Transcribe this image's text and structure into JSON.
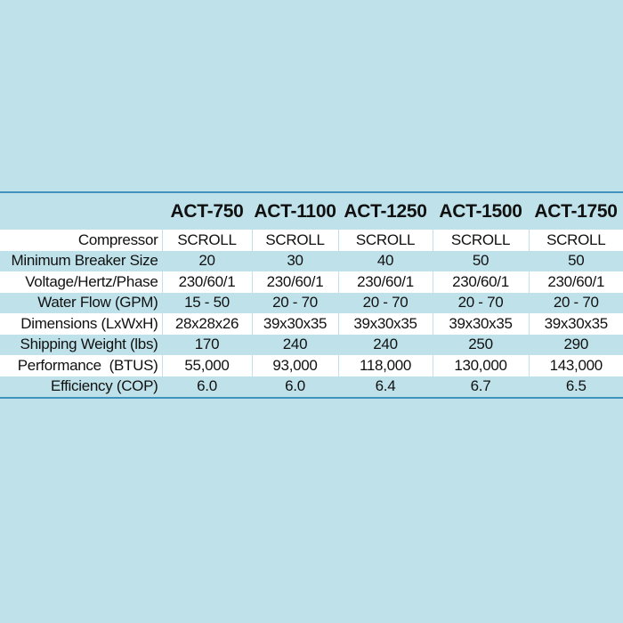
{
  "table": {
    "models": [
      "ACT-750",
      "ACT-1100",
      "ACT-1250",
      "ACT-1500",
      "ACT-1750"
    ],
    "rows": [
      {
        "label": "Compressor",
        "values": [
          "SCROLL",
          "SCROLL",
          "SCROLL",
          "SCROLL",
          "SCROLL"
        ]
      },
      {
        "label": "Minimum Breaker Size",
        "values": [
          "20",
          "30",
          "40",
          "50",
          "50"
        ]
      },
      {
        "label": "Voltage/Hertz/Phase",
        "values": [
          "230/60/1",
          "230/60/1",
          "230/60/1",
          "230/60/1",
          "230/60/1"
        ]
      },
      {
        "label": "Water Flow (GPM)",
        "values": [
          "15 - 50",
          "20 - 70",
          "20 - 70",
          "20 - 70",
          "20 - 70"
        ]
      },
      {
        "label": "Dimensions (LxWxH)",
        "values": [
          "28x28x26",
          "39x30x35",
          "39x30x35",
          "39x30x35",
          "39x30x35"
        ]
      },
      {
        "label": "Shipping Weight (lbs)",
        "values": [
          "170",
          "240",
          "240",
          "250",
          "290"
        ]
      },
      {
        "label": "Performance  (BTUS)",
        "values": [
          "55,000",
          "93,000",
          "118,000",
          "130,000",
          "143,000"
        ]
      },
      {
        "label": "Efficiency (COP)",
        "values": [
          "6.0",
          "6.0",
          "6.4",
          "6.7",
          "6.5"
        ]
      }
    ]
  },
  "colors": {
    "background": "#bfe2ea",
    "row_alt": "#ffffff",
    "border": "#3f93bd",
    "text": "#111111"
  }
}
